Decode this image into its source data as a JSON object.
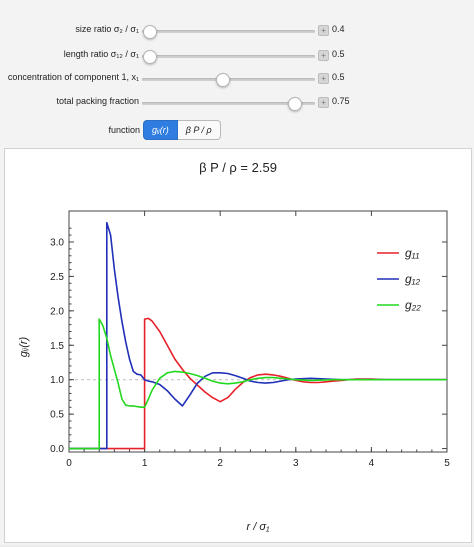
{
  "controls": {
    "sliders": [
      {
        "label": "size ratio σ₂ / σ₁",
        "value": "0.4",
        "fraction": 0.04
      },
      {
        "label": "length ratio σ₁₂ / σ₁",
        "value": "0.5",
        "fraction": 0.04
      },
      {
        "label": "concentration of component 1, x₁",
        "value": "0.5",
        "fraction": 0.46
      },
      {
        "label": "total packing fraction",
        "value": "0.75",
        "fraction": 0.88
      }
    ],
    "function_label": "function",
    "function_options": [
      "gᵢⱼ(r)",
      "β P / ρ"
    ],
    "selected_function": "gᵢⱼ(r)"
  },
  "plot": {
    "title": "β P / ρ = 2.59",
    "xlabel": "r / σ₁",
    "ylabel": "gᵢⱼ(r)"
  },
  "chart_data": {
    "type": "line",
    "title": "β P / ρ = 2.59",
    "xlabel": "r / σ₁",
    "ylabel": "gᵢⱼ(r)",
    "xlim": [
      0,
      5
    ],
    "ylim": [
      -0.05,
      3.45
    ],
    "x_ticks": [
      "0",
      "1",
      "2",
      "3",
      "4",
      "5"
    ],
    "y_ticks": [
      "0.0",
      "0.5",
      "1.0",
      "1.5",
      "2.0",
      "2.5",
      "3.0"
    ],
    "reference_line_y": 1.0,
    "legend_position": "top-right",
    "series": [
      {
        "name": "g₁₁",
        "color": "#e8202a",
        "points": [
          [
            0,
            0
          ],
          [
            1.0,
            0
          ],
          [
            1.0,
            1.88
          ],
          [
            1.05,
            1.89
          ],
          [
            1.1,
            1.85
          ],
          [
            1.2,
            1.7
          ],
          [
            1.3,
            1.5
          ],
          [
            1.4,
            1.3
          ],
          [
            1.5,
            1.15
          ],
          [
            1.6,
            1.02
          ],
          [
            1.7,
            0.92
          ],
          [
            1.8,
            0.82
          ],
          [
            1.9,
            0.74
          ],
          [
            2.0,
            0.68
          ],
          [
            2.1,
            0.74
          ],
          [
            2.2,
            0.86
          ],
          [
            2.3,
            0.96
          ],
          [
            2.4,
            1.03
          ],
          [
            2.5,
            1.07
          ],
          [
            2.6,
            1.08
          ],
          [
            2.7,
            1.07
          ],
          [
            2.8,
            1.05
          ],
          [
            2.9,
            1.02
          ],
          [
            3.0,
            0.99
          ],
          [
            3.1,
            0.97
          ],
          [
            3.2,
            0.96
          ],
          [
            3.3,
            0.96
          ],
          [
            3.4,
            0.97
          ],
          [
            3.5,
            0.98
          ],
          [
            3.6,
            0.99
          ],
          [
            3.8,
            1.01
          ],
          [
            4.0,
            1.01
          ],
          [
            4.2,
            1.0
          ],
          [
            4.5,
            1.0
          ],
          [
            5.0,
            1.0
          ]
        ]
      },
      {
        "name": "g₁₂",
        "color": "#2030b8",
        "points": [
          [
            0,
            0
          ],
          [
            0.5,
            0
          ],
          [
            0.5,
            3.28
          ],
          [
            0.55,
            3.1
          ],
          [
            0.6,
            2.6
          ],
          [
            0.65,
            2.2
          ],
          [
            0.7,
            1.85
          ],
          [
            0.75,
            1.55
          ],
          [
            0.8,
            1.3
          ],
          [
            0.85,
            1.12
          ],
          [
            0.9,
            1.08
          ],
          [
            0.95,
            1.07
          ],
          [
            1.0,
            1.0
          ],
          [
            1.05,
            0.98
          ],
          [
            1.1,
            0.97
          ],
          [
            1.2,
            0.93
          ],
          [
            1.3,
            0.84
          ],
          [
            1.4,
            0.72
          ],
          [
            1.5,
            0.62
          ],
          [
            1.6,
            0.78
          ],
          [
            1.7,
            0.95
          ],
          [
            1.8,
            1.05
          ],
          [
            1.9,
            1.1
          ],
          [
            2.0,
            1.1
          ],
          [
            2.1,
            1.09
          ],
          [
            2.2,
            1.06
          ],
          [
            2.3,
            1.02
          ],
          [
            2.4,
            0.98
          ],
          [
            2.5,
            0.96
          ],
          [
            2.6,
            0.95
          ],
          [
            2.7,
            0.96
          ],
          [
            2.8,
            0.98
          ],
          [
            2.9,
            1.0
          ],
          [
            3.0,
            1.01
          ],
          [
            3.2,
            1.02
          ],
          [
            3.4,
            1.01
          ],
          [
            3.6,
            1.0
          ],
          [
            4.0,
            1.0
          ],
          [
            5.0,
            1.0
          ]
        ]
      },
      {
        "name": "g₂₂",
        "color": "#22d81e",
        "points": [
          [
            0,
            0
          ],
          [
            0.4,
            0
          ],
          [
            0.4,
            1.88
          ],
          [
            0.45,
            1.78
          ],
          [
            0.5,
            1.6
          ],
          [
            0.55,
            1.35
          ],
          [
            0.6,
            1.15
          ],
          [
            0.65,
            0.95
          ],
          [
            0.7,
            0.72
          ],
          [
            0.75,
            0.63
          ],
          [
            0.8,
            0.62
          ],
          [
            0.85,
            0.62
          ],
          [
            0.9,
            0.61
          ],
          [
            0.95,
            0.6
          ],
          [
            1.0,
            0.6
          ],
          [
            1.05,
            0.72
          ],
          [
            1.1,
            0.85
          ],
          [
            1.2,
            1.02
          ],
          [
            1.3,
            1.1
          ],
          [
            1.4,
            1.12
          ],
          [
            1.5,
            1.11
          ],
          [
            1.6,
            1.09
          ],
          [
            1.7,
            1.06
          ],
          [
            1.8,
            1.02
          ],
          [
            1.9,
            0.98
          ],
          [
            2.0,
            0.95
          ],
          [
            2.1,
            0.94
          ],
          [
            2.2,
            0.95
          ],
          [
            2.3,
            0.97
          ],
          [
            2.4,
            1.0
          ],
          [
            2.5,
            1.02
          ],
          [
            2.6,
            1.03
          ],
          [
            2.7,
            1.03
          ],
          [
            2.8,
            1.02
          ],
          [
            2.9,
            1.01
          ],
          [
            3.0,
            1.0
          ],
          [
            3.2,
            0.99
          ],
          [
            3.5,
            1.0
          ],
          [
            4.0,
            1.0
          ],
          [
            5.0,
            1.0
          ]
        ]
      }
    ]
  }
}
